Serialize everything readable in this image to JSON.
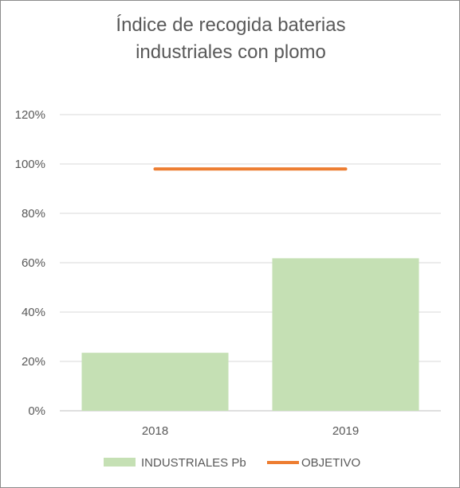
{
  "chart_data": {
    "type": "bar",
    "title_lines": [
      "Índice de recogida baterias",
      "industriales con plomo"
    ],
    "categories": [
      "2018",
      "2019"
    ],
    "series": [
      {
        "name": "INDUSTRIALES Pb",
        "type": "bar",
        "color": "#c5e0b4",
        "values": [
          23.5,
          61.8
        ]
      },
      {
        "name": "OBJETIVO",
        "type": "line",
        "color": "#ed7d31",
        "values": [
          98,
          98
        ]
      }
    ],
    "ylim": [
      0,
      120
    ],
    "yticks": [
      "0%",
      "20%",
      "40%",
      "60%",
      "80%",
      "100%",
      "120%"
    ],
    "ytick_values": [
      0,
      20,
      40,
      60,
      80,
      100,
      120
    ],
    "grid": true,
    "legend": "bottom"
  }
}
